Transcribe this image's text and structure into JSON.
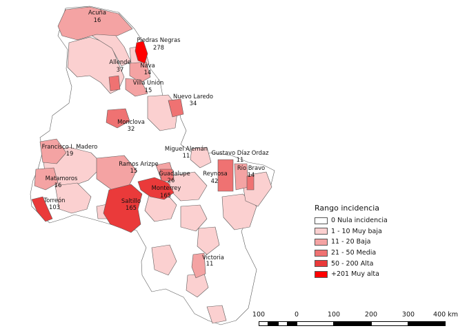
{
  "legend": {
    "title": "Rango incidencia",
    "items": [
      {
        "label": "0 Nula incidencia",
        "color": "#ffffff"
      },
      {
        "label": "1 - 10  Muy baja",
        "color": "#fbd0d0"
      },
      {
        "label": "11 - 20 Baja",
        "color": "#f4a3a3"
      },
      {
        "label": "21 - 50 Media",
        "color": "#ef7272"
      },
      {
        "label": "50 - 200 Alta",
        "color": "#ea3a3a"
      },
      {
        "label": "+201 Muy alta",
        "color": "#ff0000"
      }
    ]
  },
  "places": [
    {
      "name": "Acuña",
      "value": "16"
    },
    {
      "name": "Piedras Negras",
      "value": "278"
    },
    {
      "name": "Allende",
      "value": "37"
    },
    {
      "name": "Nava",
      "value": "14"
    },
    {
      "name": "Villa Unión",
      "value": "15"
    },
    {
      "name": "Nuevo Laredo",
      "value": "34"
    },
    {
      "name": "Monclova",
      "value": "32"
    },
    {
      "name": "Miguel Alemán",
      "value": "11"
    },
    {
      "name": "Gustavo Díaz Ordaz",
      "value": "11"
    },
    {
      "name": "Francisco I. Madero",
      "value": "19"
    },
    {
      "name": "Ramos Arizpe",
      "value": "15"
    },
    {
      "name": "Guadalupe",
      "value": "26"
    },
    {
      "name": "Reynosa",
      "value": "42"
    },
    {
      "name": "Río Bravo",
      "value": "14"
    },
    {
      "name": "Matamoros",
      "value": "16"
    },
    {
      "name": "Monterrey",
      "value": "165"
    },
    {
      "name": "Torreón",
      "value": "103"
    },
    {
      "name": "Saltillo",
      "value": "165"
    },
    {
      "name": "Victoria",
      "value": "11"
    }
  ],
  "scale": {
    "labels": [
      "100",
      "0",
      "100",
      "200",
      "300",
      "400 km"
    ]
  }
}
